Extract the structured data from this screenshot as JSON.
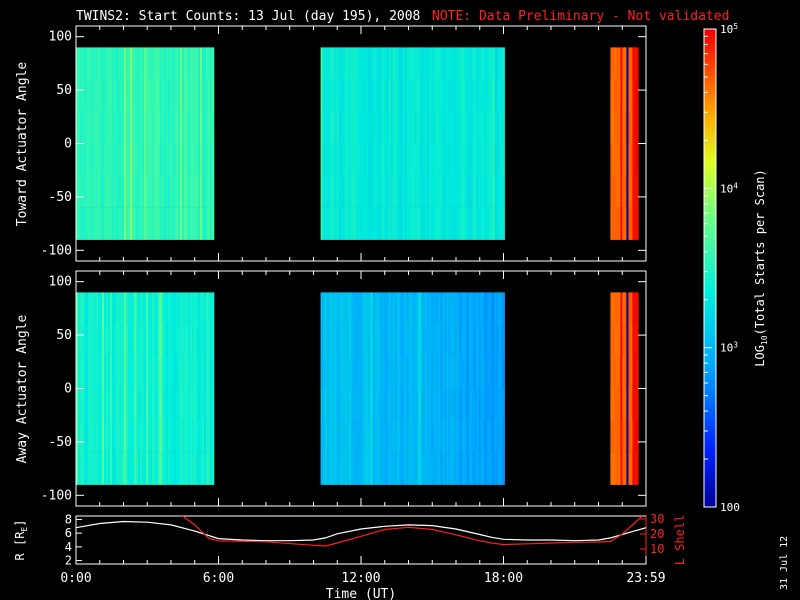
{
  "title": "TWINS2: Start Counts: 13 Jul (day 195), 2008",
  "note": "NOTE: Data Preliminary - Not validated",
  "colors": {
    "note": "#ff2020",
    "lshell": "#ff2020",
    "r": "#ffffff",
    "axes": "#ffffff"
  },
  "stamp": "31 Jul 12",
  "colorbar": {
    "label": "LOG10(Total Starts per Scan)",
    "label_prefix": "LOG",
    "label_sub": "10",
    "label_suffix": "(Total Starts per Scan)",
    "ticks": [
      {
        "value": 100,
        "label": "100"
      },
      {
        "value": 1000,
        "label": "10",
        "exp": "3"
      },
      {
        "value": 10000,
        "label": "10",
        "exp": "4"
      },
      {
        "value": 100000,
        "label": "10",
        "exp": "5"
      }
    ],
    "scale": "log"
  },
  "chart_data": [
    {
      "type": "heatmap",
      "ylabel": "Toward Actuator Angle",
      "ylim": [
        -110,
        110
      ],
      "yticks": [
        -100,
        -50,
        0,
        50,
        100
      ],
      "xlim_hours": [
        0,
        24
      ],
      "bands": [
        {
          "start": 0.0,
          "end": 5.8,
          "level": 3.55
        },
        {
          "start": 10.3,
          "end": 18.0,
          "level": 3.35
        },
        {
          "start": 22.5,
          "end": 23.6,
          "level": 4.8
        }
      ]
    },
    {
      "type": "heatmap",
      "ylabel": "Away Actuator Angle",
      "ylim": [
        -110,
        110
      ],
      "yticks": [
        -100,
        -50,
        0,
        50,
        100
      ],
      "xlim_hours": [
        0,
        24
      ],
      "bands": [
        {
          "start": 0.0,
          "end": 5.8,
          "level": 3.4
        },
        {
          "start": 10.3,
          "end": 18.0,
          "level": 3.1
        },
        {
          "start": 22.5,
          "end": 23.6,
          "level": 4.8
        }
      ]
    },
    {
      "type": "line",
      "xlabel": "Time (UT)",
      "xticks": [
        "0:00",
        "6:00",
        "12:00",
        "18:00",
        "23:59"
      ],
      "ylabel_left": "R [RE]",
      "ylabel_left_prefix": "R [R",
      "ylabel_left_sub": "E",
      "ylabel_left_suffix": "]",
      "ylim_left": [
        1.5,
        8.5
      ],
      "yticks_left": [
        2,
        4,
        6,
        8
      ],
      "ylabel_right": "L Shell",
      "ylim_right": [
        0,
        32
      ],
      "yticks_right": [
        10,
        20,
        30
      ],
      "series": [
        {
          "name": "R",
          "axis": "left",
          "x": [
            0,
            1,
            2,
            3,
            4,
            5,
            6,
            7,
            8,
            9,
            10,
            10.5,
            11,
            12,
            13,
            14,
            15,
            16,
            17,
            17.5,
            18,
            19,
            20,
            21,
            22,
            22.5,
            23,
            23.5,
            24
          ],
          "y": [
            6.8,
            7.4,
            7.7,
            7.6,
            7.2,
            6.3,
            5.2,
            5.0,
            4.9,
            4.9,
            5.0,
            5.3,
            5.9,
            6.6,
            7.0,
            7.2,
            7.1,
            6.6,
            5.8,
            5.4,
            5.1,
            5.0,
            5.0,
            4.9,
            5.0,
            5.3,
            5.8,
            6.3,
            6.8
          ]
        },
        {
          "name": "L Shell",
          "axis": "right",
          "x": [
            4.4,
            5.0,
            5.6,
            6.0,
            8,
            10,
            10.5,
            11,
            12,
            13,
            14,
            15,
            16,
            17,
            17.5,
            18,
            19,
            20,
            21,
            22,
            22.5,
            23,
            23.5,
            23.9
          ],
          "y": [
            33,
            26,
            17,
            15.5,
            14.8,
            12.5,
            12.0,
            14.0,
            18.5,
            23.0,
            24.5,
            23.0,
            19.5,
            15.5,
            14.0,
            13.0,
            13.5,
            14.0,
            14.5,
            14.7,
            15.0,
            20.0,
            27.0,
            33.0
          ]
        }
      ]
    }
  ]
}
